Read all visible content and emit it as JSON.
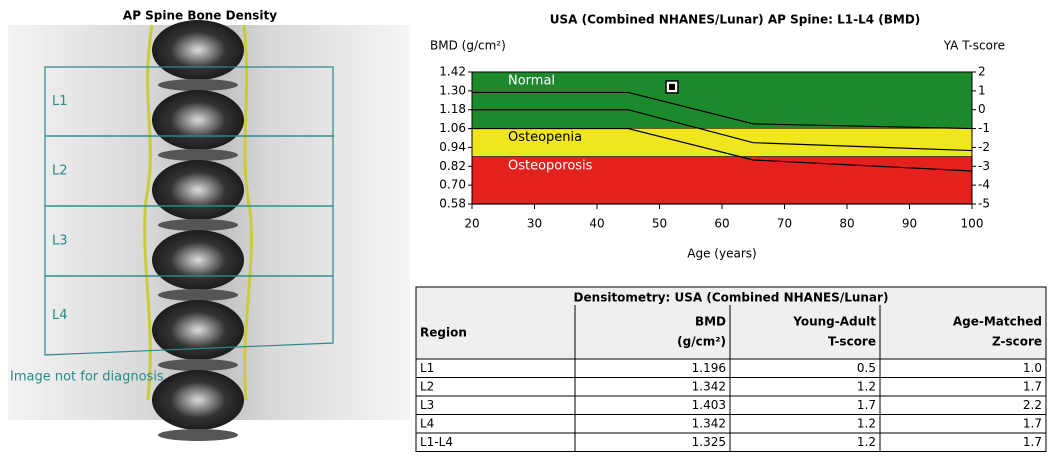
{
  "image": {
    "title": "AP Spine Bone Density",
    "regions": [
      "L1",
      "L2",
      "L3",
      "L4"
    ],
    "note": "Image not for diagnosis"
  },
  "chart_data": {
    "type": "line",
    "title": "USA (Combined NHANES/Lunar) AP Spine: L1-L4 (BMD)",
    "ylabel": "BMD (g/cm²)",
    "y2label": "YA T-score",
    "xlabel": "Age (years)",
    "xlim": [
      20,
      100
    ],
    "xticks": [
      20,
      30,
      40,
      50,
      60,
      70,
      80,
      90,
      100
    ],
    "ylim": [
      0.58,
      1.42
    ],
    "yticks": [
      {
        "value": 1.42,
        "label": "1.42"
      },
      {
        "value": 1.3,
        "label": "1.30"
      },
      {
        "value": 1.18,
        "label": "1.18"
      },
      {
        "value": 1.06,
        "label": "1.06"
      },
      {
        "value": 0.94,
        "label": "0.94"
      },
      {
        "value": 0.82,
        "label": "0.82"
      },
      {
        "value": 0.7,
        "label": "0.70"
      },
      {
        "value": 0.58,
        "label": "0.58"
      }
    ],
    "y2lim": [
      -5,
      2
    ],
    "y2ticks": [
      2,
      1,
      0,
      -1,
      -2,
      -3,
      -4,
      -5
    ],
    "bands": [
      {
        "name": "Normal",
        "color": "#1c8a2c",
        "range": [
          1.06,
          1.42
        ]
      },
      {
        "name": "Osteopenia",
        "color": "#f0e61e",
        "range": [
          0.88,
          1.06
        ]
      },
      {
        "name": "Osteoporosis",
        "color": "#e4211c",
        "range": [
          0.58,
          0.88
        ]
      }
    ],
    "x": [
      20,
      45,
      65,
      100
    ],
    "series": [
      {
        "color": "#000000",
        "values": [
          1.29,
          1.29,
          1.09,
          1.06
        ]
      },
      {
        "color": "#000000",
        "values": [
          1.18,
          1.18,
          0.97,
          0.92
        ]
      },
      {
        "color": "#000000",
        "values": [
          1.06,
          1.06,
          0.86,
          0.79
        ]
      }
    ],
    "point": {
      "x": 52,
      "y": 1.325
    }
  },
  "table": {
    "title": "Densitometry: USA (Combined NHANES/Lunar)",
    "headers": [
      [
        "Region"
      ],
      [
        "BMD",
        "(g/cm²)"
      ],
      [
        "Young-Adult",
        "T-score"
      ],
      [
        "Age-Matched",
        "Z-score"
      ]
    ],
    "rows": [
      [
        "L1",
        "1.196",
        "0.5",
        "1.0"
      ],
      [
        "L2",
        "1.342",
        "1.2",
        "1.7"
      ],
      [
        "L3",
        "1.403",
        "1.7",
        "2.2"
      ],
      [
        "L4",
        "1.342",
        "1.2",
        "1.7"
      ],
      [
        "L1-L4",
        "1.325",
        "1.2",
        "1.7"
      ]
    ]
  }
}
